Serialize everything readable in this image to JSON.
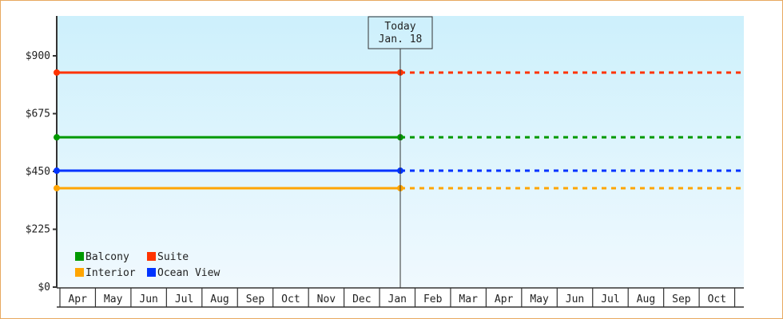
{
  "chart_data": {
    "type": "line",
    "ylim": [
      0,
      1012.5
    ],
    "yticks": [
      0,
      225,
      450,
      675,
      900
    ],
    "ytick_labels": [
      "$0",
      "$225",
      "$450",
      "$675",
      "$900"
    ],
    "categories": [
      "Apr",
      "May",
      "Jun",
      "Jul",
      "Aug",
      "Sep",
      "Oct",
      "Nov",
      "Dec",
      "Jan",
      "Feb",
      "Mar",
      "Apr",
      "May",
      "Jun",
      "Jul",
      "Aug",
      "Sep",
      "Oct"
    ],
    "today_index": 9,
    "today_label": [
      "Today",
      "Jan. 18"
    ],
    "grid": false,
    "legend_position": "bottom-left",
    "series": [
      {
        "name": "Balcony",
        "color": "#009900",
        "value": 583
      },
      {
        "name": "Suite",
        "color": "#ff3300",
        "value": 835
      },
      {
        "name": "Interior",
        "color": "#ffa500",
        "value": 385
      },
      {
        "name": "Ocean View",
        "color": "#0033ff",
        "value": 453
      }
    ],
    "note_style": "solid up to today, dashed projection after today"
  }
}
